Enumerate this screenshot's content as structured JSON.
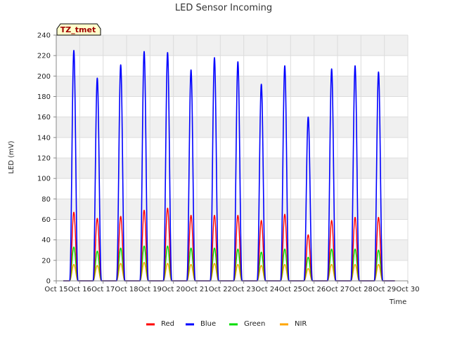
{
  "chart_data": {
    "type": "line",
    "title": "LED Sensor Incoming",
    "xlabel": "Time",
    "ylabel": "LED (mV)",
    "site_label": "TZ_tmet",
    "ylim": [
      0,
      240
    ],
    "xlim": [
      15,
      30
    ],
    "yticks": [
      0,
      20,
      40,
      60,
      80,
      100,
      120,
      140,
      160,
      180,
      200,
      220,
      240
    ],
    "xticks": [
      {
        "value": 15,
        "label": "Oct 15"
      },
      {
        "value": 16,
        "label": "Oct 16"
      },
      {
        "value": 17,
        "label": "Oct 17"
      },
      {
        "value": 18,
        "label": "Oct 18"
      },
      {
        "value": 19,
        "label": "Oct 19"
      },
      {
        "value": 20,
        "label": "Oct 20"
      },
      {
        "value": 21,
        "label": "Oct 21"
      },
      {
        "value": 22,
        "label": "Oct 22"
      },
      {
        "value": 23,
        "label": "Oct 23"
      },
      {
        "value": 24,
        "label": "Oct 24"
      },
      {
        "value": 25,
        "label": "Oct 25"
      },
      {
        "value": 26,
        "label": "Oct 26"
      },
      {
        "value": 27,
        "label": "Oct 27"
      },
      {
        "value": 28,
        "label": "Oct 28"
      },
      {
        "value": 29,
        "label": "Oct 29"
      },
      {
        "value": 30,
        "label": "Oct 30"
      }
    ],
    "grid": true,
    "legend_position": "bottom-center",
    "data_range": [
      15.3,
      29.45
    ],
    "peak_width_days": 0.36,
    "day_peaks": [
      {
        "day": 15.75,
        "blue": 225,
        "red": 67,
        "green": 33,
        "nir": 16
      },
      {
        "day": 16.75,
        "blue": 198,
        "red": 61,
        "green": 29,
        "nir": 15
      },
      {
        "day": 17.75,
        "blue": 211,
        "red": 63,
        "green": 32,
        "nir": 17
      },
      {
        "day": 18.75,
        "blue": 224,
        "red": 69,
        "green": 34,
        "nir": 18
      },
      {
        "day": 19.75,
        "blue": 223,
        "red": 71,
        "green": 34,
        "nir": 17
      },
      {
        "day": 20.75,
        "blue": 206,
        "red": 64,
        "green": 32,
        "nir": 16
      },
      {
        "day": 21.75,
        "blue": 218,
        "red": 64,
        "green": 32,
        "nir": 17
      },
      {
        "day": 22.75,
        "blue": 214,
        "red": 64,
        "green": 31,
        "nir": 16
      },
      {
        "day": 23.75,
        "blue": 192,
        "red": 59,
        "green": 28,
        "nir": 15
      },
      {
        "day": 24.75,
        "blue": 210,
        "red": 65,
        "green": 31,
        "nir": 16
      },
      {
        "day": 25.75,
        "blue": 160,
        "red": 45,
        "green": 23,
        "nir": 12
      },
      {
        "day": 26.75,
        "blue": 207,
        "red": 59,
        "green": 31,
        "nir": 16
      },
      {
        "day": 27.75,
        "blue": 210,
        "red": 62,
        "green": 31,
        "nir": 16
      },
      {
        "day": 28.75,
        "blue": 204,
        "red": 62,
        "green": 30,
        "nir": 16
      }
    ],
    "series": [
      {
        "name": "Red",
        "key": "red",
        "color": "#ff0000"
      },
      {
        "name": "Blue",
        "key": "blue",
        "color": "#0000ff"
      },
      {
        "name": "Green",
        "key": "green",
        "color": "#00dd00"
      },
      {
        "name": "NIR",
        "key": "nir",
        "color": "#ffa500"
      }
    ]
  }
}
